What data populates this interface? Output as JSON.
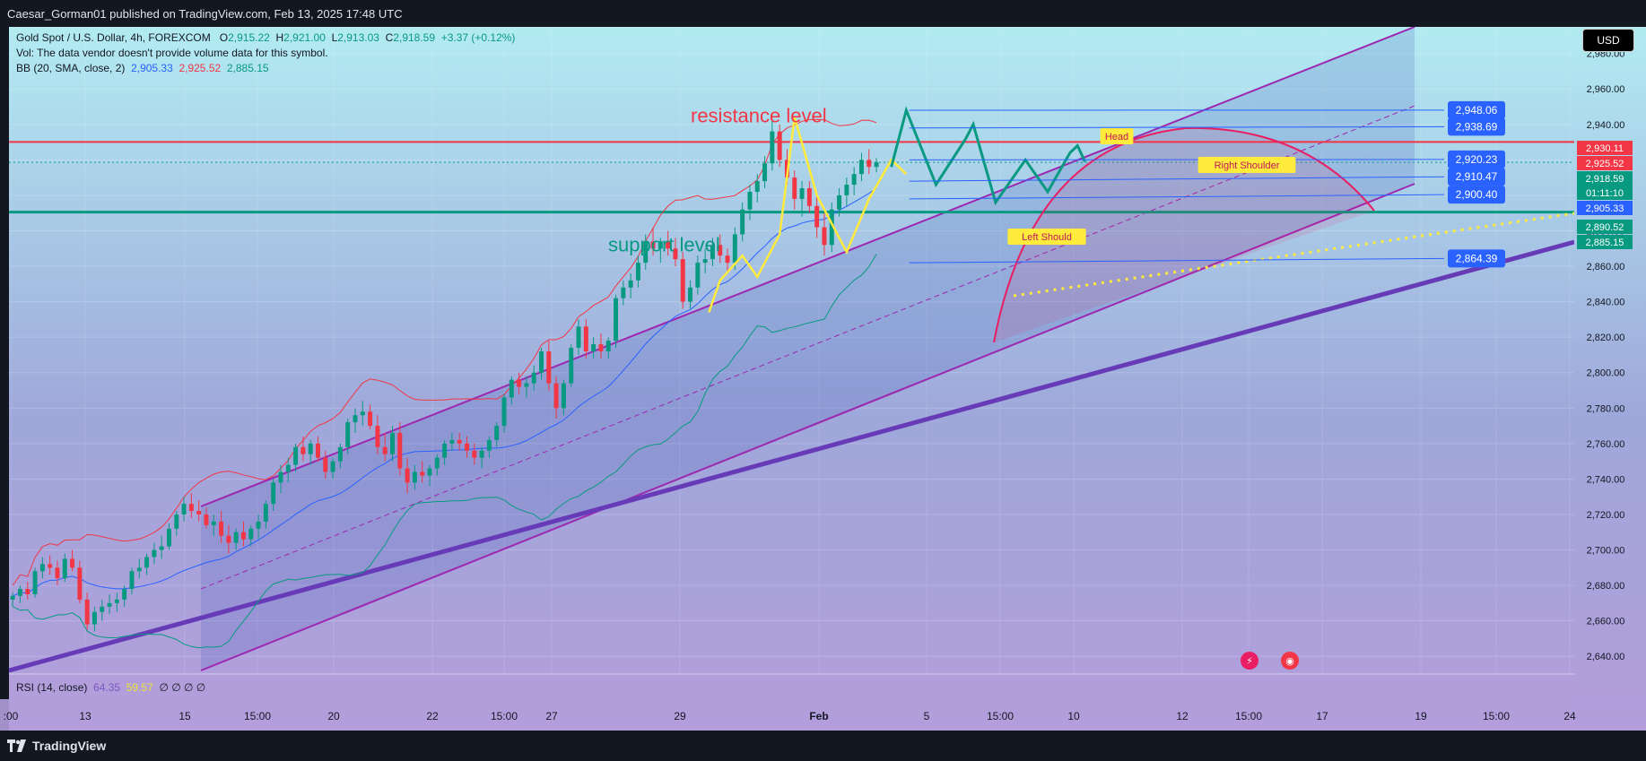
{
  "header": {
    "publish_line": "Caesar_Gorman01 published on TradingView.com, Feb 13, 2025 17:48 UTC"
  },
  "legend": {
    "symbol": "Gold Spot / U.S. Dollar, 4h, FOREXCOM",
    "o_label": "O",
    "o_value": "2,915.22",
    "h_label": "H",
    "h_value": "2,921.00",
    "l_label": "L",
    "l_value": "2,913.03",
    "c_label": "C",
    "c_value": "2,918.59",
    "change": "+3.37 (+0.12%)",
    "vol_line": "Vol: The data vendor doesn't provide volume data for this symbol.",
    "bb_label": "BB (20, SMA, close, 2)",
    "bb_basis": "2,905.33",
    "bb_upper": "2,925.52",
    "bb_lower": "2,885.15"
  },
  "rsi_legend": {
    "label": "RSI (14, close)",
    "v1": "64.35",
    "v2": "59.57",
    "rest": "∅ ∅ ∅ ∅"
  },
  "currency_button": "USD",
  "footer": {
    "brand": "TradingView"
  },
  "colors": {
    "resistance": "#f23645",
    "support": "#089981",
    "channel": "#9c27b0",
    "trend": "#673ab7",
    "pattern": "#ffeb3b",
    "projection": "#089981",
    "bb_basis": "#2962ff",
    "bb_upper": "#f23645",
    "bb_lower": "#089981",
    "candle_up": "#089981",
    "candle_down": "#f23645"
  },
  "chart_data": {
    "type": "candlestick",
    "title": "Gold Spot / U.S. Dollar, 4h, FOREXCOM",
    "ylim": [
      2630,
      2995
    ],
    "y_ticks": [
      2640,
      2660,
      2680,
      2700,
      2720,
      2740,
      2760,
      2780,
      2800,
      2820,
      2840,
      2860,
      2880,
      2900,
      2920,
      2940,
      2960,
      2980
    ],
    "x_ticks": [
      ":00",
      "13",
      "15",
      "15:00",
      "20",
      "22",
      "15:00",
      "27",
      "29",
      "Feb",
      "5",
      "15:00",
      "10",
      "12",
      "15:00",
      "17",
      "19",
      "15:00",
      "24"
    ],
    "annotations": {
      "resistance": "resistance level",
      "support": "support level",
      "head": "Head",
      "left_shoulder": "Left Should",
      "right_shoulder": "Right Shoulder"
    },
    "resistance_value": 2930.11,
    "support_value": 2890.52,
    "price_labels_right": [
      {
        "text": "2,930.11",
        "value": 2930.11,
        "color": "#f23645"
      },
      {
        "text": "2,925.52",
        "value": 2925.52,
        "color": "#f23645"
      },
      {
        "text": "2,918.59",
        "value": 2918.59,
        "color": "#089981"
      },
      {
        "text": "01:11:10",
        "value": 2914.5,
        "color": "#089981"
      },
      {
        "text": "2,905.33",
        "value": 2905.33,
        "color": "#2962ff"
      },
      {
        "text": "2,890.52",
        "value": 2890.52,
        "color": "#089981"
      },
      {
        "text": "2,885.15",
        "value": 2885.15,
        "color": "#089981"
      }
    ],
    "projection_labels": [
      {
        "text": "2,948.06",
        "value": 2948.06
      },
      {
        "text": "2,938.69",
        "value": 2938.69
      },
      {
        "text": "2,920.23",
        "value": 2920.23
      },
      {
        "text": "2,910.47",
        "value": 2910.47
      },
      {
        "text": "2,900.40",
        "value": 2900.4
      },
      {
        "text": "2,864.39",
        "value": 2864.39
      }
    ],
    "candles": [
      [
        2672,
        2676,
        2668,
        2674
      ],
      [
        2674,
        2680,
        2670,
        2678
      ],
      [
        2678,
        2682,
        2672,
        2675
      ],
      [
        2675,
        2690,
        2673,
        2688
      ],
      [
        2688,
        2696,
        2684,
        2692
      ],
      [
        2692,
        2697,
        2686,
        2690
      ],
      [
        2690,
        2694,
        2680,
        2684
      ],
      [
        2684,
        2698,
        2682,
        2695
      ],
      [
        2695,
        2700,
        2688,
        2690
      ],
      [
        2690,
        2694,
        2670,
        2672
      ],
      [
        2672,
        2676,
        2655,
        2658
      ],
      [
        2658,
        2668,
        2654,
        2665
      ],
      [
        2665,
        2672,
        2660,
        2668
      ],
      [
        2668,
        2675,
        2664,
        2670
      ],
      [
        2670,
        2676,
        2665,
        2672
      ],
      [
        2672,
        2680,
        2668,
        2678
      ],
      [
        2678,
        2690,
        2675,
        2688
      ],
      [
        2688,
        2695,
        2684,
        2690
      ],
      [
        2690,
        2698,
        2686,
        2696
      ],
      [
        2696,
        2704,
        2692,
        2700
      ],
      [
        2700,
        2708,
        2695,
        2702
      ],
      [
        2702,
        2715,
        2700,
        2712
      ],
      [
        2712,
        2722,
        2708,
        2720
      ],
      [
        2720,
        2730,
        2716,
        2726
      ],
      [
        2726,
        2732,
        2718,
        2722
      ],
      [
        2722,
        2728,
        2716,
        2720
      ],
      [
        2720,
        2724,
        2712,
        2714
      ],
      [
        2714,
        2720,
        2708,
        2716
      ],
      [
        2716,
        2722,
        2704,
        2708
      ],
      [
        2708,
        2714,
        2698,
        2704
      ],
      [
        2704,
        2712,
        2700,
        2710
      ],
      [
        2710,
        2716,
        2702,
        2706
      ],
      [
        2706,
        2714,
        2702,
        2712
      ],
      [
        2712,
        2720,
        2706,
        2716
      ],
      [
        2716,
        2728,
        2712,
        2726
      ],
      [
        2726,
        2740,
        2722,
        2738
      ],
      [
        2738,
        2748,
        2732,
        2744
      ],
      [
        2744,
        2752,
        2738,
        2748
      ],
      [
        2748,
        2760,
        2744,
        2758
      ],
      [
        2758,
        2764,
        2750,
        2754
      ],
      [
        2754,
        2762,
        2748,
        2760
      ],
      [
        2760,
        2764,
        2750,
        2752
      ],
      [
        2752,
        2756,
        2740,
        2744
      ],
      [
        2744,
        2752,
        2740,
        2750
      ],
      [
        2750,
        2760,
        2746,
        2758
      ],
      [
        2758,
        2774,
        2754,
        2772
      ],
      [
        2772,
        2780,
        2766,
        2776
      ],
      [
        2776,
        2784,
        2770,
        2778
      ],
      [
        2778,
        2782,
        2768,
        2770
      ],
      [
        2770,
        2776,
        2754,
        2758
      ],
      [
        2758,
        2766,
        2750,
        2754
      ],
      [
        2754,
        2770,
        2750,
        2766
      ],
      [
        2766,
        2772,
        2742,
        2746
      ],
      [
        2746,
        2752,
        2732,
        2738
      ],
      [
        2738,
        2748,
        2734,
        2744
      ],
      [
        2744,
        2750,
        2738,
        2742
      ],
      [
        2742,
        2748,
        2736,
        2746
      ],
      [
        2746,
        2754,
        2742,
        2752
      ],
      [
        2752,
        2762,
        2748,
        2760
      ],
      [
        2760,
        2766,
        2756,
        2762
      ],
      [
        2762,
        2766,
        2756,
        2760
      ],
      [
        2760,
        2764,
        2752,
        2756
      ],
      [
        2756,
        2760,
        2748,
        2752
      ],
      [
        2752,
        2758,
        2746,
        2756
      ],
      [
        2756,
        2764,
        2752,
        2762
      ],
      [
        2762,
        2772,
        2758,
        2770
      ],
      [
        2770,
        2788,
        2766,
        2786
      ],
      [
        2786,
        2798,
        2782,
        2796
      ],
      [
        2796,
        2800,
        2788,
        2792
      ],
      [
        2792,
        2798,
        2786,
        2794
      ],
      [
        2794,
        2804,
        2790,
        2800
      ],
      [
        2800,
        2814,
        2796,
        2812
      ],
      [
        2812,
        2818,
        2790,
        2794
      ],
      [
        2794,
        2798,
        2774,
        2780
      ],
      [
        2780,
        2796,
        2776,
        2794
      ],
      [
        2794,
        2816,
        2792,
        2814
      ],
      [
        2814,
        2830,
        2810,
        2826
      ],
      [
        2826,
        2830,
        2808,
        2812
      ],
      [
        2812,
        2820,
        2808,
        2816
      ],
      [
        2816,
        2822,
        2808,
        2812
      ],
      [
        2812,
        2820,
        2808,
        2818
      ],
      [
        2818,
        2844,
        2814,
        2842
      ],
      [
        2842,
        2852,
        2838,
        2848
      ],
      [
        2848,
        2856,
        2842,
        2852
      ],
      [
        2852,
        2866,
        2848,
        2862
      ],
      [
        2862,
        2878,
        2858,
        2874
      ],
      [
        2874,
        2882,
        2866,
        2870
      ],
      [
        2870,
        2876,
        2862,
        2874
      ],
      [
        2874,
        2880,
        2866,
        2870
      ],
      [
        2870,
        2876,
        2860,
        2864
      ],
      [
        2864,
        2868,
        2836,
        2840
      ],
      [
        2840,
        2852,
        2836,
        2848
      ],
      [
        2848,
        2866,
        2844,
        2862
      ],
      [
        2862,
        2870,
        2856,
        2864
      ],
      [
        2864,
        2876,
        2860,
        2872
      ],
      [
        2872,
        2878,
        2862,
        2866
      ],
      [
        2866,
        2870,
        2856,
        2862
      ],
      [
        2862,
        2882,
        2858,
        2878
      ],
      [
        2878,
        2896,
        2874,
        2892
      ],
      [
        2892,
        2906,
        2886,
        2902
      ],
      [
        2902,
        2912,
        2896,
        2908
      ],
      [
        2908,
        2922,
        2904,
        2918
      ],
      [
        2918,
        2942,
        2914,
        2936
      ],
      [
        2936,
        2940,
        2916,
        2920
      ],
      [
        2920,
        2926,
        2906,
        2910
      ],
      [
        2910,
        2914,
        2892,
        2898
      ],
      [
        2898,
        2908,
        2888,
        2904
      ],
      [
        2904,
        2908,
        2890,
        2894
      ],
      [
        2894,
        2900,
        2876,
        2882
      ],
      [
        2882,
        2890,
        2866,
        2872
      ],
      [
        2872,
        2896,
        2868,
        2892
      ],
      [
        2892,
        2904,
        2888,
        2900
      ],
      [
        2900,
        2910,
        2894,
        2906
      ],
      [
        2906,
        2916,
        2900,
        2912
      ],
      [
        2912,
        2924,
        2908,
        2920
      ],
      [
        2920,
        2926,
        2912,
        2916
      ],
      [
        2916,
        2921,
        2913,
        2918.59
      ]
    ],
    "series": [
      {
        "name": "BB (20, SMA, close, 2) basis",
        "role": "basis"
      },
      {
        "name": "BB upper",
        "role": "upper"
      },
      {
        "name": "BB lower",
        "role": "lower"
      }
    ],
    "pattern_points": [
      [
        151.5,
        2834
      ],
      [
        153,
        2852
      ],
      [
        156,
        2866
      ],
      [
        158,
        2854
      ],
      [
        161,
        2878
      ],
      [
        163,
        2944
      ],
      [
        166,
        2900
      ],
      [
        170,
        2868
      ],
      [
        173,
        2898
      ],
      [
        176,
        2920
      ],
      [
        178,
        2912
      ]
    ],
    "pattern_labels": {
      "left_shoulder_idx": 156,
      "head_idx": 163,
      "right_shoulder_idx": 176
    },
    "neckline": [
      [
        158,
        2854
      ],
      [
        170,
        2868
      ],
      [
        240,
        2904
      ]
    ],
    "projection_points": [
      [
        176,
        2916
      ],
      [
        178,
        2948
      ],
      [
        182,
        2906
      ],
      [
        186,
        2932
      ],
      [
        187,
        2940
      ],
      [
        190,
        2896
      ],
      [
        194,
        2920
      ],
      [
        197,
        2902
      ],
      [
        200,
        2924
      ],
      [
        201,
        2928
      ],
      [
        202,
        2919
      ]
    ],
    "rsi": {
      "value": 64.35,
      "ma": 59.57,
      "range": [
        0,
        100
      ]
    }
  }
}
